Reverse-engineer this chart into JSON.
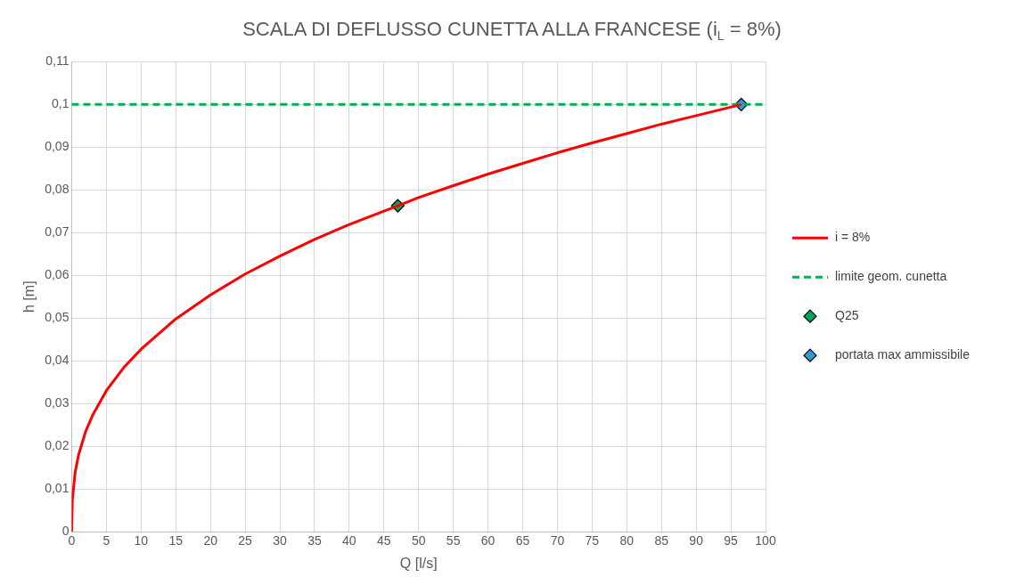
{
  "chart_data": {
    "type": "line",
    "title": "SCALA DI DEFLUSSO CUNETTA ALLA FRANCESE (i$_{L}$ = 8%)",
    "xlabel": "Q [l/s]",
    "ylabel": "h [m]",
    "xlim": [
      0,
      100
    ],
    "xticks": [
      0,
      5,
      10,
      15,
      20,
      25,
      30,
      35,
      40,
      45,
      50,
      55,
      60,
      65,
      70,
      75,
      80,
      85,
      90,
      95,
      100
    ],
    "ylim": [
      0,
      0.11
    ],
    "yticks": [
      0,
      {
        "value": 0.01,
        "label": "0,01"
      },
      {
        "value": 0.02,
        "label": "0,02"
      },
      {
        "value": 0.03,
        "label": "0,03"
      },
      {
        "value": 0.04,
        "label": "0,04"
      },
      {
        "value": 0.05,
        "label": "0,05"
      },
      {
        "value": 0.06,
        "label": "0,06"
      },
      {
        "value": 0.07,
        "label": "0,07"
      },
      {
        "value": 0.08,
        "label": "0,08"
      },
      {
        "value": 0.09,
        "label": "0,09"
      },
      {
        "value": 0.1,
        "label": "0,1"
      },
      {
        "value": 0.11,
        "label": "0,11"
      }
    ],
    "grid": true,
    "legend": "right",
    "series": [
      {
        "name": "i = 8%",
        "color": "#ff0000",
        "marker": "none",
        "line_style": "solid",
        "x": [
          0,
          0.1,
          0.5,
          1,
          2,
          3,
          5,
          7.5,
          10,
          15,
          20,
          25,
          30,
          35,
          40,
          47,
          50,
          55,
          60,
          65,
          70,
          75,
          80,
          85,
          90,
          96.5
        ],
        "values": [
          0,
          0.0076,
          0.0139,
          0.018,
          0.0234,
          0.0272,
          0.033,
          0.0384,
          0.0427,
          0.0498,
          0.0554,
          0.0603,
          0.0645,
          0.0684,
          0.0719,
          0.0763,
          0.0782,
          0.081,
          0.0837,
          0.0862,
          0.0887,
          0.091,
          0.0932,
          0.0954,
          0.0974,
          0.1
        ]
      },
      {
        "name": "limite geom. cunetta",
        "color": "#00b050",
        "marker": "none",
        "line_style": "dashed",
        "x": [
          0,
          100
        ],
        "values": [
          0.1,
          0.1
        ]
      },
      {
        "name": "Q25",
        "type": "scatter",
        "color": "#00a651",
        "marker": "diamond",
        "x": [
          47
        ],
        "values": [
          0.0763
        ]
      },
      {
        "name": "portata max ammissibile",
        "type": "scatter",
        "color": "#2e9bd6",
        "marker": "diamond",
        "x": [
          96.5
        ],
        "values": [
          0.1
        ]
      }
    ]
  }
}
